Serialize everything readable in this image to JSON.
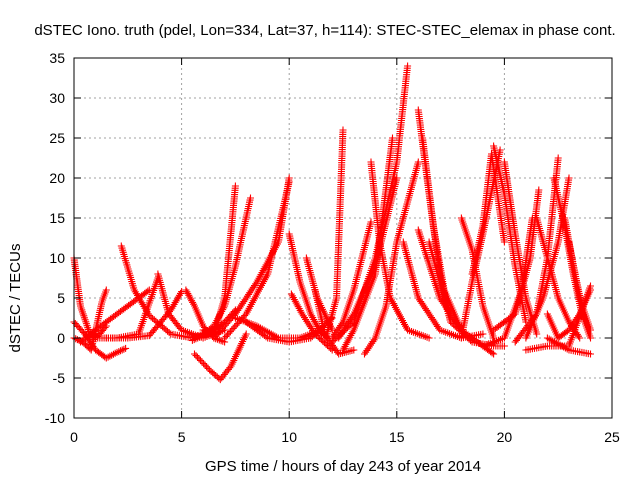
{
  "chart_data": {
    "type": "scatter",
    "title": "dSTEC Iono. truth (pdel, Lon=334, Lat=37, h=114): STEC-STEC_elemax in phase cont.",
    "xlabel": "GPS time / hours of day 243 of year 2014",
    "ylabel": "dSTEC  / TECUs",
    "xlim": [
      0,
      25
    ],
    "ylim": [
      -10,
      35
    ],
    "xticks": [
      "0",
      "5",
      "10",
      "15",
      "20",
      "25"
    ],
    "yticks": [
      "-10",
      "-5",
      "0",
      "5",
      "10",
      "15",
      "20",
      "25",
      "30",
      "35"
    ],
    "grid": true,
    "marker": "+",
    "marker_color": "#ff0000",
    "series": [
      {
        "x": [
          0.0,
          0.3,
          0.7,
          1.1,
          1.5
        ],
        "y": [
          10.0,
          4.0,
          0.8,
          0.2,
          1.5
        ]
      },
      {
        "x": [
          0.0,
          0.4,
          0.8,
          1.3,
          1.5
        ],
        "y": [
          0.0,
          -0.5,
          -1.5,
          4.5,
          6.0
        ]
      },
      {
        "x": [
          0.0,
          0.5,
          1.0,
          1.5,
          2.0,
          2.4
        ],
        "y": [
          2.0,
          0.5,
          -1.5,
          -2.5,
          -1.8,
          -1.3
        ]
      },
      {
        "x": [
          0.3,
          1.0,
          2.0,
          3.0,
          3.5
        ],
        "y": [
          -0.5,
          1.0,
          3.0,
          5.0,
          6.0
        ]
      },
      {
        "x": [
          0.5,
          1.0,
          2.0,
          3.0,
          3.9
        ],
        "y": [
          0.5,
          0.0,
          0.0,
          0.5,
          7.5
        ]
      },
      {
        "x": [
          2.2,
          2.8,
          3.5,
          4.5,
          5.5,
          6.5
        ],
        "y": [
          11.5,
          6.0,
          2.8,
          0.5,
          0.0,
          1.0
        ]
      },
      {
        "x": [
          3.9,
          4.4,
          5.0,
          6.0,
          7.0
        ],
        "y": [
          8.0,
          3.0,
          1.0,
          0.0,
          1.0
        ]
      },
      {
        "x": [
          1.5,
          2.5,
          3.5,
          4.5,
          5.0
        ],
        "y": [
          0.0,
          0.0,
          0.3,
          3.5,
          5.8
        ]
      },
      {
        "x": [
          5.2,
          5.6,
          6.0,
          6.5,
          7.0
        ],
        "y": [
          6.0,
          4.0,
          1.5,
          0.0,
          -0.5
        ]
      },
      {
        "x": [
          5.5,
          6.0,
          6.5,
          7.0,
          7.5
        ],
        "y": [
          -0.3,
          0.3,
          1.0,
          2.0,
          3.5
        ]
      },
      {
        "x": [
          6.0,
          6.5,
          7.0,
          7.5
        ],
        "y": [
          1.0,
          0.5,
          5.0,
          19.0
        ]
      },
      {
        "x": [
          6.0,
          6.5,
          7.0,
          7.5,
          8.2
        ],
        "y": [
          0.5,
          1.5,
          4.0,
          9.0,
          17.5
        ]
      },
      {
        "x": [
          5.6,
          6.3,
          6.8,
          7.3,
          8.0
        ],
        "y": [
          -2.0,
          -4.0,
          -5.2,
          -3.5,
          0.5
        ]
      },
      {
        "x": [
          6.5,
          7.5,
          8.5,
          9.5,
          10.0
        ],
        "y": [
          0.0,
          3.0,
          7.0,
          12.0,
          20.0
        ]
      },
      {
        "x": [
          7.0,
          8.0,
          9.0,
          10.0
        ],
        "y": [
          0.0,
          3.0,
          8.0,
          19.5
        ]
      },
      {
        "x": [
          7.5,
          8.5,
          9.5,
          10.5
        ],
        "y": [
          2.5,
          1.5,
          0.0,
          0.0
        ]
      },
      {
        "x": [
          8.0,
          9.0,
          10.0,
          11.0,
          12.0
        ],
        "y": [
          2.0,
          0.0,
          -0.5,
          0.0,
          2.5
        ]
      },
      {
        "x": [
          10.0,
          10.5,
          11.0,
          11.5
        ],
        "y": [
          13.0,
          7.0,
          3.0,
          0.5
        ]
      },
      {
        "x": [
          10.1,
          10.6,
          11.2,
          12.0
        ],
        "y": [
          5.5,
          3.0,
          0.5,
          -1.5
        ]
      },
      {
        "x": [
          10.5,
          11.5,
          12.3,
          13.0
        ],
        "y": [
          0.0,
          1.0,
          -2.0,
          -1.5
        ]
      },
      {
        "x": [
          10.8,
          11.3,
          12.0
        ],
        "y": [
          10.0,
          5.0,
          1.0
        ]
      },
      {
        "x": [
          11.2,
          11.7,
          12.2,
          12.5
        ],
        "y": [
          6.0,
          0.0,
          5.0,
          26.0
        ]
      },
      {
        "x": [
          12.0,
          12.5,
          13.0,
          13.8
        ],
        "y": [
          0.0,
          2.0,
          6.0,
          14.5
        ]
      },
      {
        "x": [
          12.0,
          13.0,
          14.0,
          15.0,
          15.5
        ],
        "y": [
          -0.5,
          2.0,
          10.0,
          22.0,
          34.0
        ]
      },
      {
        "x": [
          12.3,
          13.0,
          14.0,
          15.0
        ],
        "y": [
          0.0,
          3.0,
          9.0,
          20.0
        ]
      },
      {
        "x": [
          12.5,
          13.0,
          14.0,
          14.8
        ],
        "y": [
          -1.5,
          1.0,
          8.0,
          25.0
        ]
      },
      {
        "x": [
          13.5,
          14.0,
          14.5,
          15.0,
          16.0
        ],
        "y": [
          -2.0,
          0.0,
          4.0,
          12.0,
          22.0
        ]
      },
      {
        "x": [
          13.8,
          14.2,
          14.7,
          15.5,
          16.5
        ],
        "y": [
          22.0,
          12.0,
          5.0,
          1.0,
          0.0
        ]
      },
      {
        "x": [
          16.0,
          16.5,
          17.0,
          17.5
        ],
        "y": [
          28.5,
          18.0,
          8.0,
          2.5
        ]
      },
      {
        "x": [
          16.2,
          16.7,
          17.2,
          18.0
        ],
        "y": [
          25.0,
          14.0,
          6.0,
          1.0
        ]
      },
      {
        "x": [
          15.3,
          16.0,
          17.0,
          18.0,
          19.0
        ],
        "y": [
          12.0,
          5.0,
          1.0,
          0.0,
          0.5
        ]
      },
      {
        "x": [
          16.0,
          17.0,
          18.0,
          19.0,
          19.5
        ],
        "y": [
          13.5,
          5.0,
          1.0,
          -1.0,
          -2.0
        ]
      },
      {
        "x": [
          16.5,
          17.5,
          18.5,
          19.5,
          20.0
        ],
        "y": [
          12.0,
          2.0,
          -0.5,
          -1.0,
          -1.0
        ]
      },
      {
        "x": [
          18.0,
          18.5,
          19.0,
          19.5
        ],
        "y": [
          15.0,
          11.0,
          4.0,
          0.0
        ]
      },
      {
        "x": [
          18.5,
          19.0,
          19.4,
          20.0
        ],
        "y": [
          8.0,
          14.0,
          23.0,
          12.0
        ]
      },
      {
        "x": [
          18.0,
          18.5,
          19.0,
          19.8
        ],
        "y": [
          0.0,
          7.0,
          13.0,
          23.5
        ]
      },
      {
        "x": [
          19.5,
          20.0,
          20.5,
          21.0
        ],
        "y": [
          24.0,
          18.0,
          9.0,
          2.0
        ]
      },
      {
        "x": [
          20.0,
          20.5,
          21.0,
          21.5
        ],
        "y": [
          22.0,
          13.0,
          5.0,
          0.5
        ]
      },
      {
        "x": [
          19.0,
          20.0,
          20.8,
          21.3
        ],
        "y": [
          -1.0,
          0.0,
          6.0,
          15.0
        ]
      },
      {
        "x": [
          19.5,
          20.5,
          21.2,
          21.6
        ],
        "y": [
          1.0,
          3.0,
          10.0,
          18.5
        ]
      },
      {
        "x": [
          20.5,
          21.5,
          22.0,
          22.5
        ],
        "y": [
          -0.5,
          3.0,
          10.0,
          22.5
        ]
      },
      {
        "x": [
          21.0,
          21.8,
          22.5,
          23.0
        ],
        "y": [
          0.0,
          5.0,
          12.0,
          20.0
        ]
      },
      {
        "x": [
          22.3,
          22.8,
          23.2,
          23.6,
          24.0
        ],
        "y": [
          20.0,
          14.0,
          8.0,
          3.0,
          0.0
        ]
      },
      {
        "x": [
          22.8,
          23.2,
          23.6,
          24.0
        ],
        "y": [
          15.0,
          9.0,
          4.0,
          1.0
        ]
      },
      {
        "x": [
          21.5,
          22.0,
          22.5,
          23.0,
          23.5
        ],
        "y": [
          15.0,
          10.0,
          5.0,
          2.0,
          0.0
        ]
      },
      {
        "x": [
          21.0,
          22.0,
          23.0,
          24.0
        ],
        "y": [
          -1.5,
          -1.0,
          -1.0,
          6.5
        ]
      },
      {
        "x": [
          22.0,
          23.0,
          24.0
        ],
        "y": [
          0.0,
          -1.5,
          -2.0
        ]
      },
      {
        "x": [
          23.0,
          23.5,
          24.0
        ],
        "y": [
          12.0,
          5.0,
          1.0
        ]
      },
      {
        "x": [
          22.0,
          22.5,
          23.0,
          23.5,
          24.0
        ],
        "y": [
          3.0,
          0.0,
          1.0,
          3.0,
          6.0
        ]
      }
    ]
  }
}
